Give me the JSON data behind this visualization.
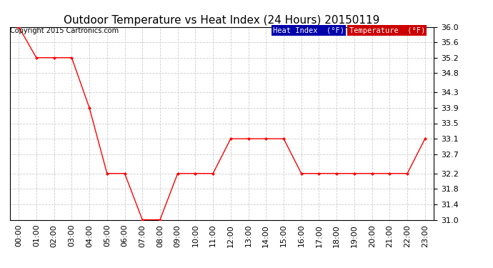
{
  "title": "Outdoor Temperature vs Heat Index (24 Hours) 20150119",
  "copyright_text": "Copyright 2015 Cartronics.com",
  "ylim": [
    31.0,
    36.0
  ],
  "yticks": [
    31.0,
    31.4,
    31.8,
    32.2,
    32.7,
    33.1,
    33.5,
    33.9,
    34.3,
    34.8,
    35.2,
    35.6,
    36.0
  ],
  "x_labels": [
    "00:00",
    "01:00",
    "02:00",
    "03:00",
    "04:00",
    "05:00",
    "06:00",
    "07:00",
    "08:00",
    "09:00",
    "10:00",
    "11:00",
    "12:00",
    "13:00",
    "14:00",
    "15:00",
    "16:00",
    "17:00",
    "18:00",
    "19:00",
    "20:00",
    "21:00",
    "22:00",
    "23:00"
  ],
  "temperature_data": [
    36.0,
    35.2,
    35.2,
    35.2,
    33.9,
    32.2,
    32.2,
    31.0,
    31.0,
    32.2,
    32.2,
    32.2,
    33.1,
    33.1,
    33.1,
    33.1,
    32.2,
    32.2,
    32.2,
    32.2,
    32.2,
    32.2,
    32.2,
    33.1
  ],
  "temp_color": "#ff0000",
  "heat_index_color": "#0000aa",
  "background_color": "#ffffff",
  "plot_bg_color": "#ffffff",
  "grid_color": "#cccccc",
  "legend_heat_bg": "#0000aa",
  "legend_temp_bg": "#cc0000",
  "legend_text_color": "#ffffff",
  "legend_heat_label": "Heat Index  (°F)",
  "legend_temp_label": "Temperature  (°F)",
  "title_fontsize": 11,
  "tick_fontsize": 8,
  "copyright_fontsize": 7
}
